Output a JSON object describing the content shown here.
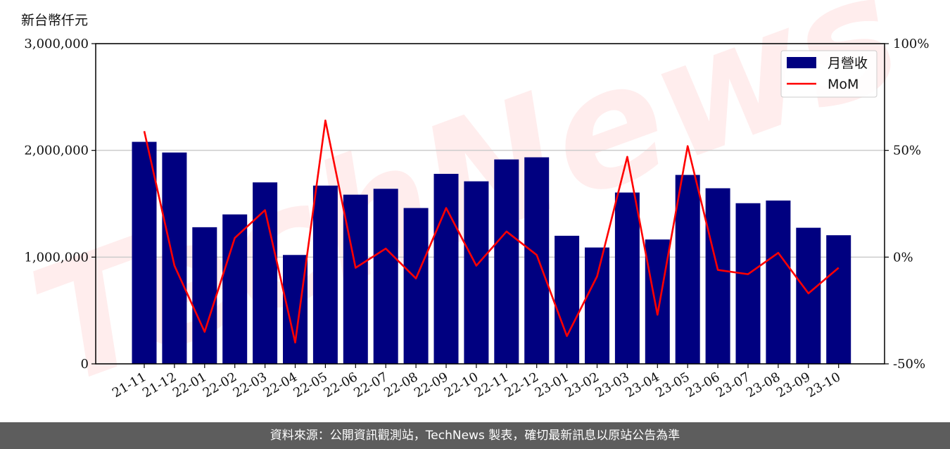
{
  "unit_label": "新台幣仟元",
  "footer_text": "資料來源：公開資訊觀測站，TechNews 製表，確切最新訊息以原站公告為準",
  "watermark_text": "TechNews",
  "colors": {
    "bar": "#000080",
    "line": "#ff0000",
    "grid": "#cccccc",
    "footer_bg": "#5d5d5d"
  },
  "chart_data": {
    "type": "bar",
    "categories": [
      "21-11",
      "21-12",
      "22-01",
      "22-02",
      "22-03",
      "22-04",
      "22-05",
      "22-06",
      "22-07",
      "22-08",
      "22-09",
      "22-10",
      "22-11",
      "22-12",
      "23-01",
      "23-02",
      "23-03",
      "23-04",
      "23-05",
      "23-06",
      "23-07",
      "23-08",
      "23-09",
      "23-10"
    ],
    "series": [
      {
        "name": "月營收",
        "type": "bar",
        "axis": "left",
        "values": [
          2080000,
          1980000,
          1280000,
          1400000,
          1700000,
          1020000,
          1670000,
          1585000,
          1640000,
          1460000,
          1780000,
          1710000,
          1915000,
          1935000,
          1200000,
          1090000,
          1605000,
          1165000,
          1770000,
          1645000,
          1505000,
          1530000,
          1275000,
          1205000
        ]
      },
      {
        "name": "MoM",
        "type": "line",
        "axis": "right",
        "values": [
          59,
          -4,
          -35,
          9,
          22,
          -40,
          64,
          -5,
          4,
          -10,
          23,
          -4,
          12,
          1,
          -37,
          -9,
          47,
          -27,
          52,
          -6,
          -8,
          2,
          -17,
          -5
        ]
      }
    ],
    "y_left": {
      "lim": [
        0,
        3000000
      ],
      "ticks": [
        0,
        1000000,
        2000000,
        3000000
      ],
      "tick_labels": [
        "0",
        "1,000,000",
        "2,000,000",
        "3,000,000"
      ]
    },
    "y_right": {
      "lim": [
        -50,
        100
      ],
      "ticks": [
        -50,
        0,
        50,
        100
      ],
      "tick_labels": [
        "-50%",
        "0%",
        "50%",
        "100%"
      ]
    },
    "grid": "horizontal",
    "legend_position": "top-right"
  }
}
